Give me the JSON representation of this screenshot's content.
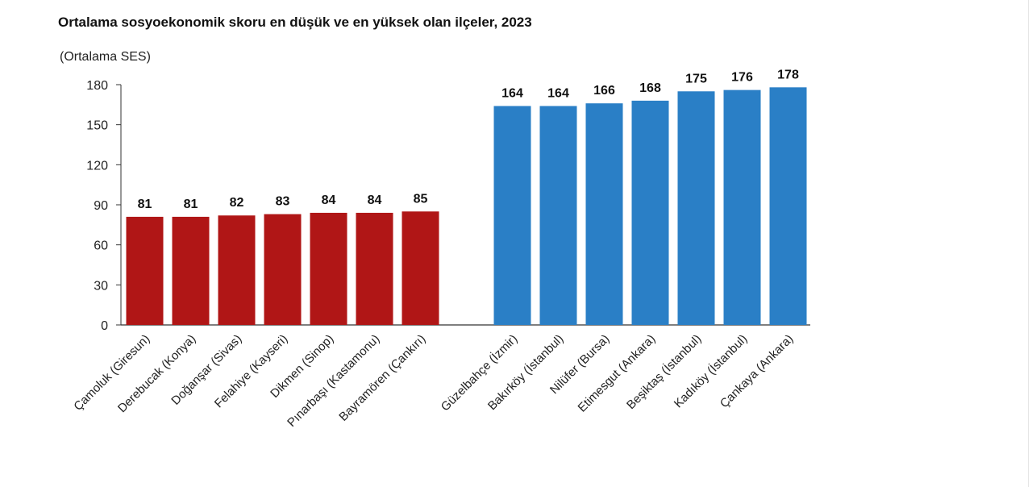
{
  "chart_data": {
    "type": "bar",
    "title": "Ortalama sosyoekonomik skoru en düşük ve en yüksek olan ilçeler, 2023",
    "ylabel": "(Ortalama SES)",
    "xlabel": "",
    "ylim": [
      0,
      180
    ],
    "yticks": [
      0,
      30,
      60,
      90,
      120,
      150,
      180
    ],
    "grid": false,
    "colors": {
      "lowest": "#b01616",
      "highest": "#2a7fc6"
    },
    "groups": [
      {
        "color_key": "lowest",
        "categories": [
          "Çamoluk (Giresun)",
          "Derebucak (Konya)",
          "Doğanşar (Sivas)",
          "Felahiye (Kayseri)",
          "Dikmen (Sinop)",
          "Pınarbaşı (Kastamonu)",
          "Bayramören (Çankırı)"
        ],
        "values": [
          81,
          81,
          82,
          83,
          84,
          84,
          85
        ]
      },
      {
        "color_key": "highest",
        "categories": [
          "Güzelbahçe (İzmir)",
          "Bakırköy (İstanbul)",
          "Nilüfer (Bursa)",
          "Etimesgut (Ankara)",
          "Beşiktaş (İstanbul)",
          "Kadıköy (İstanbul)",
          "Çankaya (Ankara)"
        ],
        "values": [
          164,
          164,
          166,
          168,
          175,
          176,
          178
        ]
      }
    ]
  }
}
